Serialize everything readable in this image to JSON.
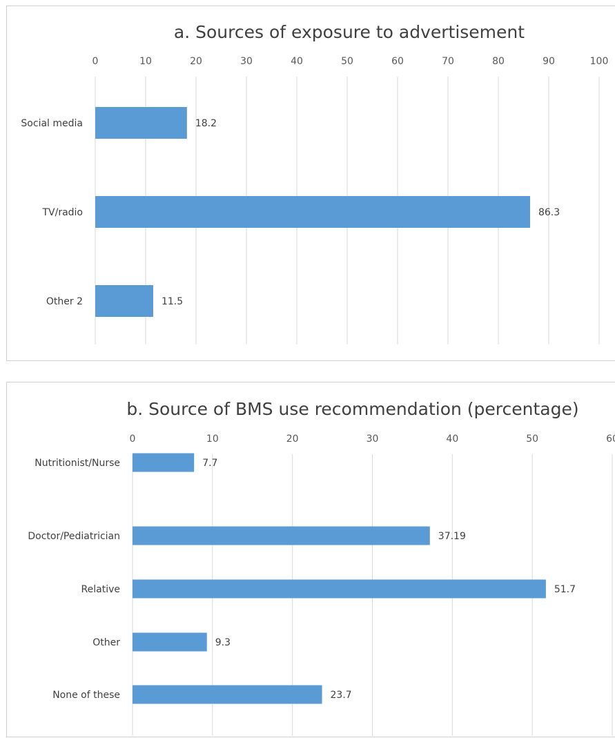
{
  "chart_data": [
    {
      "type": "bar",
      "orientation": "horizontal",
      "title": "a. Sources of exposure to advertisement",
      "categories": [
        "Social media",
        "TV/radio",
        "Other 2"
      ],
      "values": [
        18.2,
        86.3,
        11.5
      ],
      "data_labels": [
        "18.2",
        "86.3",
        "11.5"
      ],
      "xticks": [
        "0",
        "10",
        "20",
        "30",
        "40",
        "50",
        "60",
        "70",
        "80",
        "90",
        "100"
      ],
      "xlim": [
        0,
        100
      ],
      "axis_position": "top",
      "grid": true,
      "bar_color": "#5b9bd5"
    },
    {
      "type": "bar",
      "orientation": "horizontal",
      "title": "b. Source of BMS use recommendation (percentage)",
      "categories": [
        "Nutritionist/Nurse",
        "Doctor/Pediatrician",
        "Relative",
        "Other",
        "None of these"
      ],
      "values": [
        7.7,
        37.19,
        51.7,
        9.3,
        23.7
      ],
      "data_labels": [
        "7.7",
        "37.19",
        "51.7",
        "9.3",
        "23.7"
      ],
      "xticks": [
        "0",
        "10",
        "20",
        "30",
        "40",
        "50",
        "60"
      ],
      "xlim": [
        0,
        60
      ],
      "axis_position": "top",
      "grid": true,
      "bar_color": "#5b9bd5"
    }
  ]
}
